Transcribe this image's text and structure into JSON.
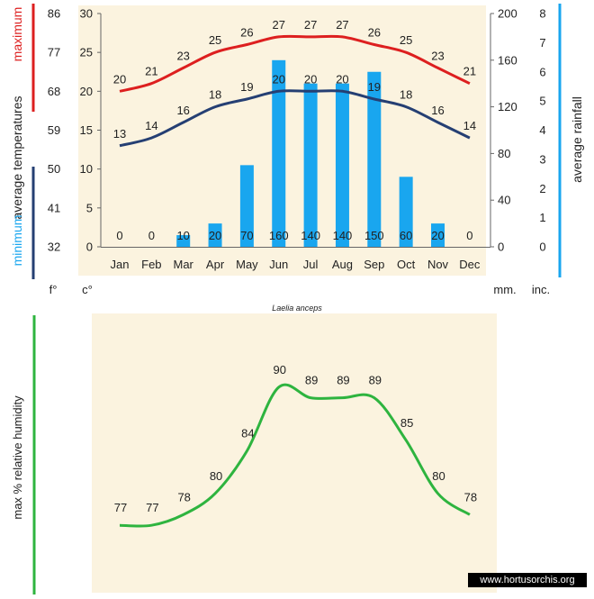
{
  "colors": {
    "max_temp": "#dd1f1f",
    "min_temp": "#253f73",
    "rain": "#19a6ef",
    "humidity": "#2eb43f",
    "bg": "#fbf3df",
    "text": "#222222"
  },
  "labels": {
    "left_max": "maximum",
    "left_avg": "average",
    "left_temps": "temperatures",
    "left_min": "minimum",
    "right_avg_rainfall": "average rainfall",
    "unit_f": "f°",
    "unit_c": "c°",
    "unit_mm": "mm.",
    "unit_inc": "inc.",
    "species": "Laelia anceps",
    "humidity_axis": "max %  relative humidity",
    "credit": "www.hortusorchis.org"
  },
  "chart_data": [
    {
      "type": "line",
      "categories": [
        "Jan",
        "Feb",
        "Mar",
        "Apr",
        "May",
        "Jun",
        "Jul",
        "Aug",
        "Sep",
        "Oct",
        "Nov",
        "Dec"
      ],
      "series": [
        {
          "name": "maximum",
          "values": [
            20,
            21,
            23,
            25,
            26,
            27,
            27,
            27,
            26,
            25,
            23,
            21
          ]
        },
        {
          "name": "minimum",
          "values": [
            13,
            14,
            16,
            18,
            19,
            20,
            20,
            20,
            19,
            18,
            16,
            14
          ]
        }
      ],
      "rainfall_mm": [
        0,
        0,
        10,
        20,
        70,
        160,
        140,
        140,
        150,
        60,
        20,
        0
      ],
      "y_celsius_ticks": [
        "0",
        "5",
        "10",
        "15",
        "20",
        "25",
        "30"
      ],
      "y_fahrenheit_ticks": [
        "32",
        "41",
        "50",
        "59",
        "68",
        "77",
        "86"
      ],
      "y_mm_ticks": [
        "0",
        "40",
        "80",
        "120",
        "160",
        "200"
      ],
      "y_inch_ticks": [
        "0",
        "1",
        "2",
        "3",
        "4",
        "5",
        "6",
        "7",
        "8"
      ],
      "ylim_celsius": [
        0,
        30
      ],
      "ylim_mm": [
        0,
        200
      ],
      "grid": false
    },
    {
      "type": "line",
      "series": [
        {
          "name": "relative humidity",
          "values": [
            77,
            77,
            78,
            80,
            84,
            90,
            89,
            89,
            89,
            85,
            80,
            78
          ]
        }
      ],
      "ylim": [
        76,
        91
      ]
    }
  ]
}
